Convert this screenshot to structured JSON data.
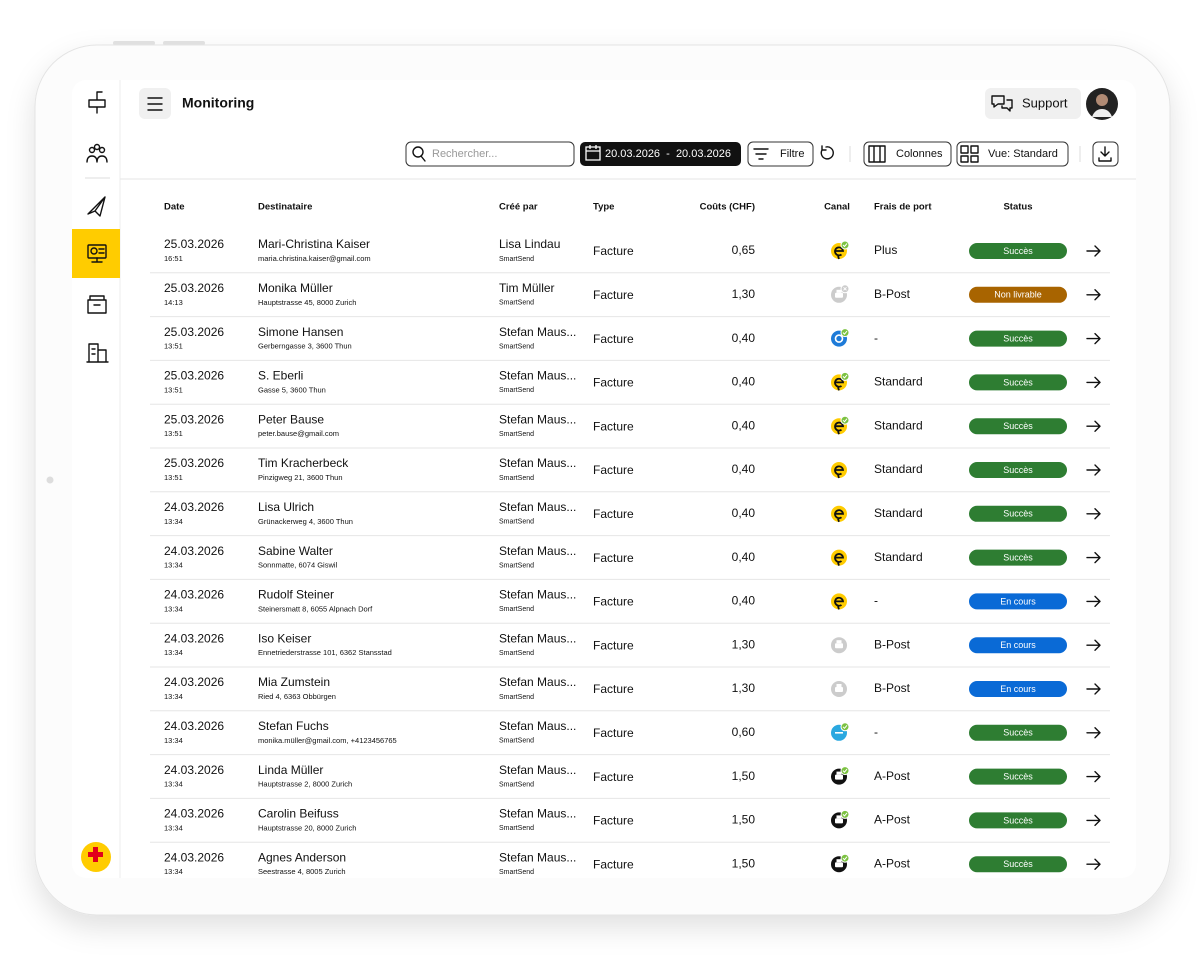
{
  "header": {
    "title": "Monitoring",
    "support": "Support"
  },
  "toolbar": {
    "search_placeholder": "Rechercher...",
    "date_range": "20.03.2026  -  20.03.2026",
    "filter": "Filtre",
    "columns": "Colonnes",
    "view": "Vue: Standard"
  },
  "table": {
    "columns": [
      "Date",
      "Destinataire",
      "Créé par",
      "Type",
      "Coûts (CHF)",
      "Canal",
      "Frais de port",
      "Status"
    ],
    "rows": [
      {
        "date": "25.03.2026",
        "time": "16:51",
        "name": "Mari-Christina Kaiser",
        "address": "maria.christina.kaiser@gmail.com",
        "created_by": "Lisa Lindau",
        "org": "SmartSend",
        "type": "Facture",
        "cost": "0,65",
        "postage": "Plus",
        "status": "Succès",
        "status_color": "#2e7d32"
      },
      {
        "date": "25.03.2026",
        "time": "14:13",
        "name": "Monika Müller",
        "address": "Hauptstrasse 45, 8000 Zurich",
        "created_by": "Tim Müller",
        "org": "SmartSend",
        "type": "Facture",
        "cost": "1,30",
        "postage": "B-Post",
        "status": "Non livrable",
        "status_color": "#a86400"
      },
      {
        "date": "25.03.2026",
        "time": "13:51",
        "name": "Simone Hansen",
        "address": "Gerberngasse 3, 3600 Thun",
        "created_by": "Stefan Maus...",
        "org": "SmartSend",
        "type": "Facture",
        "cost": "0,40",
        "postage": "-",
        "status": "Succès",
        "status_color": "#2e7d32"
      },
      {
        "date": "25.03.2026",
        "time": "13:51",
        "name": "S. Eberli",
        "address": "Gasse 5, 3600 Thun",
        "created_by": "Stefan Maus...",
        "org": "SmartSend",
        "type": "Facture",
        "cost": "0,40",
        "postage": "Standard",
        "status": "Succès",
        "status_color": "#2e7d32"
      },
      {
        "date": "25.03.2026",
        "time": "13:51",
        "name": "Peter Bause",
        "address": "peter.bause@gmail.com",
        "created_by": "Stefan Maus...",
        "org": "SmartSend",
        "type": "Facture",
        "cost": "0,40",
        "postage": "Standard",
        "status": "Succès",
        "status_color": "#2e7d32"
      },
      {
        "date": "25.03.2026",
        "time": "13:51",
        "name": "Tim Kracherbeck",
        "address": "Pinzigweg 21, 3600 Thun",
        "created_by": "Stefan Maus...",
        "org": "SmartSend",
        "type": "Facture",
        "cost": "0,40",
        "postage": "Standard",
        "status": "Succès",
        "status_color": "#2e7d32"
      },
      {
        "date": "24.03.2026",
        "time": "13:34",
        "name": "Lisa Ulrich",
        "address": "Grünackerweg 4, 3600 Thun",
        "created_by": "Stefan Maus...",
        "org": "SmartSend",
        "type": "Facture",
        "cost": "0,40",
        "postage": "Standard",
        "status": "Succès",
        "status_color": "#2e7d32"
      },
      {
        "date": "24.03.2026",
        "time": "13:34",
        "name": "Sabine Walter",
        "address": "Sonnmatte, 6074 Giswil",
        "created_by": "Stefan Maus...",
        "org": "SmartSend",
        "type": "Facture",
        "cost": "0,40",
        "postage": "Standard",
        "status": "Succès",
        "status_color": "#2e7d32"
      },
      {
        "date": "24.03.2026",
        "time": "13:34",
        "name": "Rudolf Steiner",
        "address": "Steinersmatt 8, 6055 Alpnach Dorf",
        "created_by": "Stefan Maus...",
        "org": "SmartSend",
        "type": "Facture",
        "cost": "0,40",
        "postage": "-",
        "status": "En cours",
        "status_color": "#0a6ad6"
      },
      {
        "date": "24.03.2026",
        "time": "13:34",
        "name": "Iso Keiser",
        "address": "Ennetriederstrasse 101, 6362 Stansstad",
        "created_by": "Stefan Maus...",
        "org": "SmartSend",
        "type": "Facture",
        "cost": "1,30",
        "postage": "B-Post",
        "status": "En cours",
        "status_color": "#0a6ad6"
      },
      {
        "date": "24.03.2026",
        "time": "13:34",
        "name": "Mia Zumstein",
        "address": "Ried 4, 6363 Obbürgen",
        "created_by": "Stefan Maus...",
        "org": "SmartSend",
        "type": "Facture",
        "cost": "1,30",
        "postage": "B-Post",
        "status": "En cours",
        "status_color": "#0a6ad6"
      },
      {
        "date": "24.03.2026",
        "time": "13:34",
        "name": "Stefan Fuchs",
        "address": "monika.müller@gmail.com, +4123456765",
        "created_by": "Stefan Maus...",
        "org": "SmartSend",
        "type": "Facture",
        "cost": "0,60",
        "postage": "-",
        "status": "Succès",
        "status_color": "#2e7d32"
      },
      {
        "date": "24.03.2026",
        "time": "13:34",
        "name": "Linda Müller",
        "address": "Hauptstrasse 2, 8000 Zurich",
        "created_by": "Stefan Maus...",
        "org": "SmartSend",
        "type": "Facture",
        "cost": "1,50",
        "postage": "A-Post",
        "status": "Succès",
        "status_color": "#2e7d32"
      },
      {
        "date": "24.03.2026",
        "time": "13:34",
        "name": "Carolin Beifuss",
        "address": "Hauptstrasse 20, 8000 Zurich",
        "created_by": "Stefan Maus...",
        "org": "SmartSend",
        "type": "Facture",
        "cost": "1,50",
        "postage": "A-Post",
        "status": "Succès",
        "status_color": "#2e7d32"
      },
      {
        "date": "24.03.2026",
        "time": "13:34",
        "name": "Agnes Anderson",
        "address": "Seestrasse 4, 8005 Zurich",
        "created_by": "Stefan Maus...",
        "org": "SmartSend",
        "type": "Facture",
        "cost": "1,50",
        "postage": "A-Post",
        "status": "Succès",
        "status_color": "#2e7d32"
      }
    ]
  }
}
